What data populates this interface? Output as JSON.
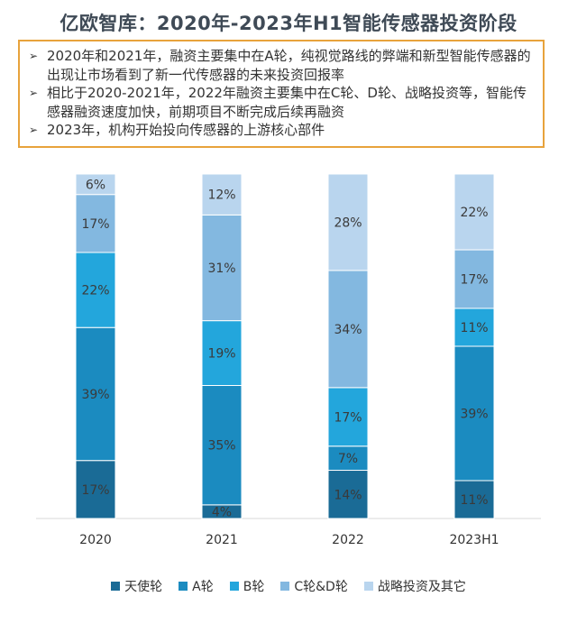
{
  "title": "亿欧智库：2020年-2023年H1智能传感器投资阶段",
  "notes": [
    "2020年和2021年，融资主要集中在A轮，纯视觉路线的弊端和新型智能传感器的出现让市场看到了新一代传感器的未来投资回报率",
    "相比于2020-2021年，2022年融资主要集中在C轮、D轮、战略投资等，智能传感器融资速度加快，前期项目不断完成后续再融资",
    "2023年，机构开始投向传感器的上游核心部件"
  ],
  "chart_data": {
    "type": "bar",
    "stacked": true,
    "percent": true,
    "categories": [
      "2020",
      "2021",
      "2022",
      "2023H1"
    ],
    "series": [
      {
        "name": "天使轮",
        "color": "#1a6b96",
        "values": [
          17,
          4,
          14,
          11
        ]
      },
      {
        "name": "A轮",
        "color": "#1b8bc0",
        "values": [
          39,
          35,
          7,
          39
        ]
      },
      {
        "name": "B轮",
        "color": "#23a6dc",
        "values": [
          22,
          19,
          17,
          11
        ]
      },
      {
        "name": "C轮&D轮",
        "color": "#83b8e0",
        "values": [
          17,
          31,
          34,
          17
        ]
      },
      {
        "name": "战略投资及其它",
        "color": "#b9d5ee",
        "values": [
          6,
          12,
          28,
          22
        ]
      }
    ],
    "labels": [
      [
        "17%",
        "4%",
        "14%",
        "11%"
      ],
      [
        "39%",
        "35%",
        "7%",
        "39%"
      ],
      [
        "22%",
        "19%",
        "17%",
        "11%"
      ],
      [
        "17%",
        "31%",
        "34%",
        "17%"
      ],
      [
        "6%",
        "12%",
        "28%",
        "22%"
      ]
    ],
    "legend": "bottom"
  }
}
